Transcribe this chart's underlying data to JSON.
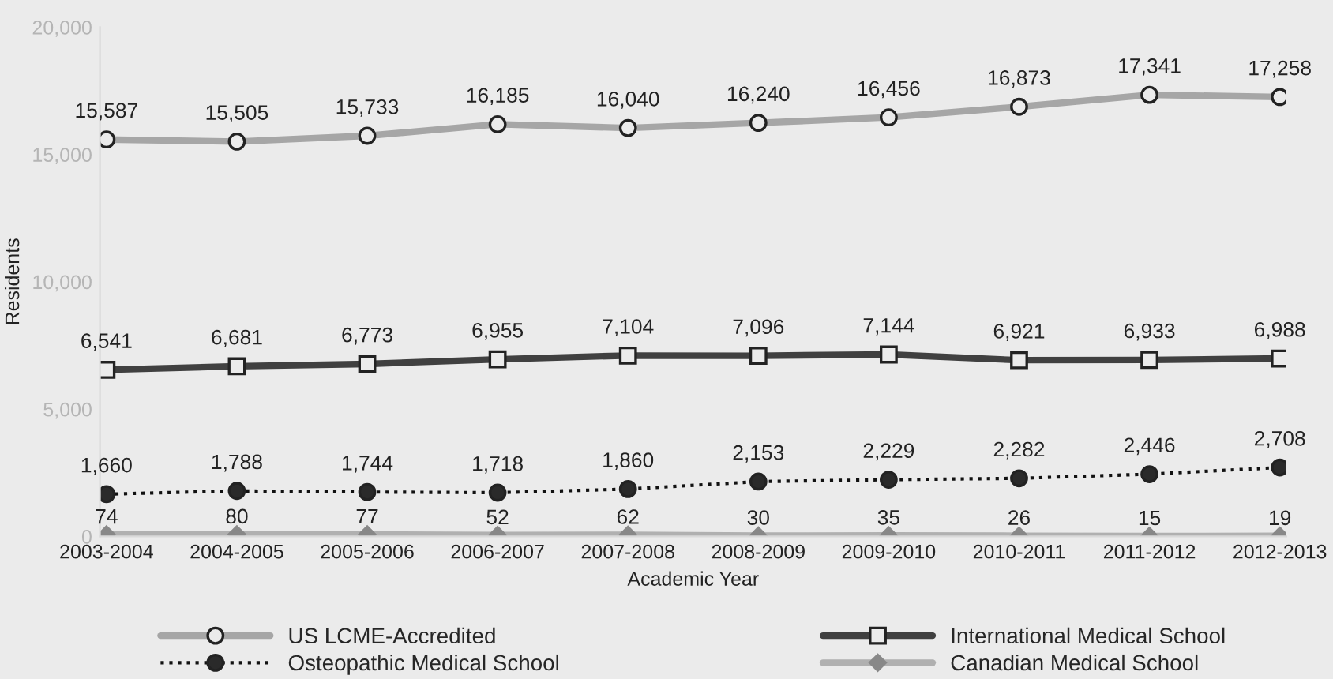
{
  "chart_data": {
    "type": "line",
    "xlabel": "Academic Year",
    "ylabel": "Residents",
    "categories": [
      "2003-2004",
      "2004-2005",
      "2005-2006",
      "2006-2007",
      "2007-2008",
      "2008-2009",
      "2009-2010",
      "2010-2011",
      "2011-2012",
      "2012-2013"
    ],
    "series": [
      {
        "name": "US LCME-Accredited",
        "color": "#a6a6a6",
        "marker": "circle",
        "line_style": "solid",
        "values": [
          15587,
          15505,
          15733,
          16185,
          16040,
          16240,
          16456,
          16873,
          17341,
          17258
        ],
        "value_labels": [
          "15,587",
          "15,505",
          "15,733",
          "16,185",
          "16,040",
          "16,240",
          "16,456",
          "16,873",
          "17,341",
          "17,258"
        ]
      },
      {
        "name": "International Medical School",
        "color": "#404040",
        "marker": "square",
        "line_style": "solid",
        "values": [
          6541,
          6681,
          6773,
          6955,
          7104,
          7096,
          7144,
          6921,
          6933,
          6988
        ],
        "value_labels": [
          "6,541",
          "6,681",
          "6,773",
          "6,955",
          "7,104",
          "7,096",
          "7,144",
          "6,921",
          "6,933",
          "6,988"
        ]
      },
      {
        "name": "Osteopathic Medical School",
        "color": "#111111",
        "marker": "circle",
        "line_style": "dotted",
        "values": [
          1660,
          1788,
          1744,
          1718,
          1860,
          2153,
          2229,
          2282,
          2446,
          2708
        ],
        "value_labels": [
          "1,660",
          "1,788",
          "1,744",
          "1,718",
          "1,860",
          "2,153",
          "2,229",
          "2,282",
          "2,446",
          "2,708"
        ]
      },
      {
        "name": "Canadian Medical School",
        "color": "#b0b0b0",
        "marker": "diamond",
        "line_style": "solid",
        "values": [
          74,
          80,
          77,
          52,
          62,
          30,
          35,
          26,
          15,
          19
        ],
        "value_labels": [
          "74",
          "80",
          "77",
          "52",
          "62",
          "30",
          "35",
          "26",
          "15",
          "19"
        ]
      }
    ],
    "ylim": [
      0,
      20000
    ],
    "yticks": [
      {
        "value": 0,
        "label": "0"
      },
      {
        "value": 5000,
        "label": "5,000"
      },
      {
        "value": 10000,
        "label": "10,000"
      },
      {
        "value": 15000,
        "label": "15,000"
      },
      {
        "value": 20000,
        "label": "20,000"
      }
    ],
    "grid": false,
    "legend": "bottom"
  }
}
